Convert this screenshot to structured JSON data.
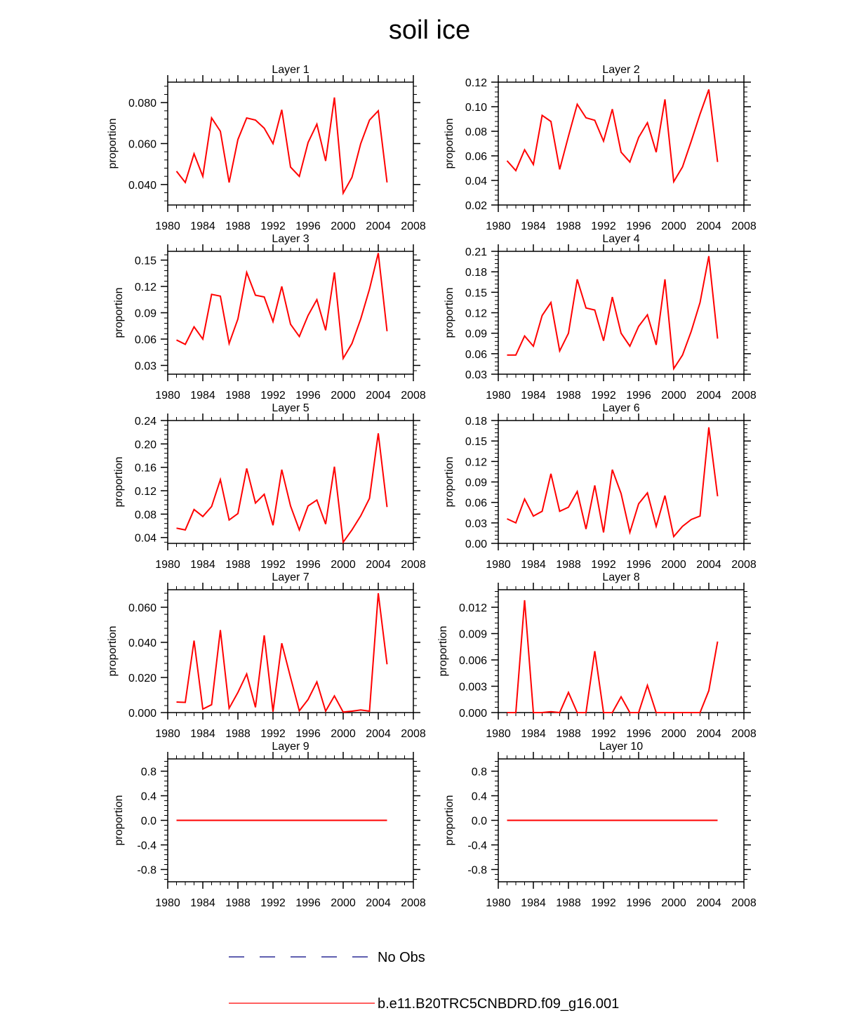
{
  "title": "soil ice",
  "colors": {
    "model": "#ff0000",
    "obs": "#000080",
    "axis": "#000000"
  },
  "legend": {
    "obs_label": "No Obs",
    "model_label": "b.e11.B20TRC5CNBDRD.f09_g16.001"
  },
  "chart_data": [
    {
      "type": "line",
      "title": "Layer 1",
      "xlabel": "",
      "ylabel": "proportion",
      "xlim": [
        1980,
        2008
      ],
      "ylim": [
        0.03,
        0.09
      ],
      "xticks": [
        1980,
        1984,
        1988,
        1992,
        1996,
        2000,
        2004,
        2008
      ],
      "xtick_labels": [
        "1980",
        "1984",
        "1988",
        "1992",
        "1996",
        "2000",
        "2004",
        "2008"
      ],
      "yticks": [
        0.04,
        0.06,
        0.08
      ],
      "ytick_labels": [
        "0.040",
        "0.060",
        "0.080"
      ],
      "x": [
        1981,
        1982,
        1983,
        1984,
        1985,
        1986,
        1987,
        1988,
        1989,
        1990,
        1991,
        1992,
        1993,
        1994,
        1995,
        1996,
        1997,
        1998,
        1999,
        2000,
        2001,
        2002,
        2003,
        2004,
        2005
      ],
      "series": [
        {
          "name": "b.e11.B20TRC5CNBDRD.f09_g16.001",
          "values": [
            0.0465,
            0.041,
            0.055,
            0.044,
            0.0725,
            0.066,
            0.041,
            0.062,
            0.0725,
            0.0715,
            0.0675,
            0.06,
            0.0765,
            0.0485,
            0.044,
            0.0605,
            0.0695,
            0.0515,
            0.0825,
            0.0358,
            0.0435,
            0.06,
            0.0715,
            0.076,
            0.041
          ]
        }
      ]
    },
    {
      "type": "line",
      "title": "Layer 2",
      "xlabel": "",
      "ylabel": "proportion",
      "xlim": [
        1980,
        2008
      ],
      "ylim": [
        0.02,
        0.12
      ],
      "xticks": [
        1980,
        1984,
        1988,
        1992,
        1996,
        2000,
        2004,
        2008
      ],
      "xtick_labels": [
        "1980",
        "1984",
        "1988",
        "1992",
        "1996",
        "2000",
        "2004",
        "2008"
      ],
      "yticks": [
        0.02,
        0.04,
        0.06,
        0.08,
        0.1,
        0.12
      ],
      "ytick_labels": [
        "0.02",
        "0.04",
        "0.06",
        "0.08",
        "0.10",
        "0.12"
      ],
      "x": [
        1981,
        1982,
        1983,
        1984,
        1985,
        1986,
        1987,
        1988,
        1989,
        1990,
        1991,
        1992,
        1993,
        1994,
        1995,
        1996,
        1997,
        1998,
        1999,
        2000,
        2001,
        2002,
        2003,
        2004,
        2005
      ],
      "series": [
        {
          "name": "b.e11.B20TRC5CNBDRD.f09_g16.001",
          "values": [
            0.056,
            0.048,
            0.065,
            0.053,
            0.093,
            0.088,
            0.049,
            0.076,
            0.102,
            0.091,
            0.089,
            0.072,
            0.098,
            0.063,
            0.055,
            0.075,
            0.087,
            0.063,
            0.106,
            0.039,
            0.051,
            0.072,
            0.094,
            0.114,
            0.055
          ]
        }
      ]
    },
    {
      "type": "line",
      "title": "Layer 3",
      "xlabel": "",
      "ylabel": "proportion",
      "xlim": [
        1980,
        2008
      ],
      "ylim": [
        0.02,
        0.16
      ],
      "xticks": [
        1980,
        1984,
        1988,
        1992,
        1996,
        2000,
        2004,
        2008
      ],
      "xtick_labels": [
        "1980",
        "1984",
        "1988",
        "1992",
        "1996",
        "2000",
        "2004",
        "2008"
      ],
      "yticks": [
        0.03,
        0.06,
        0.09,
        0.12,
        0.15
      ],
      "ytick_labels": [
        "0.03",
        "0.06",
        "0.09",
        "0.12",
        "0.15"
      ],
      "x": [
        1981,
        1982,
        1983,
        1984,
        1985,
        1986,
        1987,
        1988,
        1989,
        1990,
        1991,
        1992,
        1993,
        1994,
        1995,
        1996,
        1997,
        1998,
        1999,
        2000,
        2001,
        2002,
        2003,
        2004,
        2005
      ],
      "series": [
        {
          "name": "b.e11.B20TRC5CNBDRD.f09_g16.001",
          "values": [
            0.059,
            0.054,
            0.074,
            0.06,
            0.111,
            0.109,
            0.055,
            0.083,
            0.136,
            0.11,
            0.108,
            0.08,
            0.12,
            0.077,
            0.063,
            0.087,
            0.105,
            0.07,
            0.136,
            0.038,
            0.055,
            0.083,
            0.117,
            0.158,
            0.069
          ]
        }
      ]
    },
    {
      "type": "line",
      "title": "Layer 4",
      "xlabel": "",
      "ylabel": "proportion",
      "xlim": [
        1980,
        2008
      ],
      "ylim": [
        0.03,
        0.21
      ],
      "xticks": [
        1980,
        1984,
        1988,
        1992,
        1996,
        2000,
        2004,
        2008
      ],
      "xtick_labels": [
        "1980",
        "1984",
        "1988",
        "1992",
        "1996",
        "2000",
        "2004",
        "2008"
      ],
      "yticks": [
        0.03,
        0.06,
        0.09,
        0.12,
        0.15,
        0.18,
        0.21
      ],
      "ytick_labels": [
        "0.03",
        "0.06",
        "0.09",
        "0.12",
        "0.15",
        "0.18",
        "0.21"
      ],
      "x": [
        1981,
        1982,
        1983,
        1984,
        1985,
        1986,
        1987,
        1988,
        1989,
        1990,
        1991,
        1992,
        1993,
        1994,
        1995,
        1996,
        1997,
        1998,
        1999,
        2000,
        2001,
        2002,
        2003,
        2004,
        2005
      ],
      "series": [
        {
          "name": "b.e11.B20TRC5CNBDRD.f09_g16.001",
          "values": [
            0.058,
            0.058,
            0.086,
            0.071,
            0.116,
            0.135,
            0.064,
            0.09,
            0.169,
            0.127,
            0.124,
            0.079,
            0.143,
            0.09,
            0.071,
            0.1,
            0.117,
            0.073,
            0.169,
            0.038,
            0.058,
            0.093,
            0.135,
            0.203,
            0.082
          ]
        }
      ]
    },
    {
      "type": "line",
      "title": "Layer 5",
      "xlabel": "",
      "ylabel": "proportion",
      "xlim": [
        1980,
        2008
      ],
      "ylim": [
        0.03,
        0.24
      ],
      "xticks": [
        1980,
        1984,
        1988,
        1992,
        1996,
        2000,
        2004,
        2008
      ],
      "xtick_labels": [
        "1980",
        "1984",
        "1988",
        "1992",
        "1996",
        "2000",
        "2004",
        "2008"
      ],
      "yticks": [
        0.04,
        0.08,
        0.12,
        0.16,
        0.2,
        0.24
      ],
      "ytick_labels": [
        "0.04",
        "0.08",
        "0.12",
        "0.16",
        "0.20",
        "0.24"
      ],
      "x": [
        1981,
        1982,
        1983,
        1984,
        1985,
        1986,
        1987,
        1988,
        1989,
        1990,
        1991,
        1992,
        1993,
        1994,
        1995,
        1996,
        1997,
        1998,
        1999,
        2000,
        2001,
        2002,
        2003,
        2004,
        2005
      ],
      "series": [
        {
          "name": "b.e11.B20TRC5CNBDRD.f09_g16.001",
          "values": [
            0.056,
            0.053,
            0.088,
            0.076,
            0.093,
            0.139,
            0.07,
            0.081,
            0.158,
            0.099,
            0.114,
            0.061,
            0.156,
            0.094,
            0.053,
            0.094,
            0.104,
            0.063,
            0.161,
            0.032,
            0.053,
            0.077,
            0.107,
            0.218,
            0.092
          ]
        }
      ]
    },
    {
      "type": "line",
      "title": "Layer 6",
      "xlabel": "",
      "ylabel": "proportion",
      "xlim": [
        1980,
        2008
      ],
      "ylim": [
        0.0,
        0.18
      ],
      "xticks": [
        1980,
        1984,
        1988,
        1992,
        1996,
        2000,
        2004,
        2008
      ],
      "xtick_labels": [
        "1980",
        "1984",
        "1988",
        "1992",
        "1996",
        "2000",
        "2004",
        "2008"
      ],
      "yticks": [
        0.0,
        0.03,
        0.06,
        0.09,
        0.12,
        0.15,
        0.18
      ],
      "ytick_labels": [
        "0.00",
        "0.03",
        "0.06",
        "0.09",
        "0.12",
        "0.15",
        "0.18"
      ],
      "x": [
        1981,
        1982,
        1983,
        1984,
        1985,
        1986,
        1987,
        1988,
        1989,
        1990,
        1991,
        1992,
        1993,
        1994,
        1995,
        1996,
        1997,
        1998,
        1999,
        2000,
        2001,
        2002,
        2003,
        2004,
        2005
      ],
      "series": [
        {
          "name": "b.e11.B20TRC5CNBDRD.f09_g16.001",
          "values": [
            0.036,
            0.03,
            0.065,
            0.04,
            0.047,
            0.102,
            0.047,
            0.053,
            0.076,
            0.021,
            0.085,
            0.016,
            0.108,
            0.073,
            0.016,
            0.058,
            0.074,
            0.025,
            0.07,
            0.01,
            0.025,
            0.035,
            0.04,
            0.17,
            0.069
          ]
        }
      ]
    },
    {
      "type": "line",
      "title": "Layer 7",
      "xlabel": "",
      "ylabel": "proportion",
      "xlim": [
        1980,
        2008
      ],
      "ylim": [
        0.0,
        0.07
      ],
      "xticks": [
        1980,
        1984,
        1988,
        1992,
        1996,
        2000,
        2004,
        2008
      ],
      "xtick_labels": [
        "1980",
        "1984",
        "1988",
        "1992",
        "1996",
        "2000",
        "2004",
        "2008"
      ],
      "yticks": [
        0.0,
        0.02,
        0.04,
        0.06
      ],
      "ytick_labels": [
        "0.000",
        "0.020",
        "0.040",
        "0.060"
      ],
      "x": [
        1981,
        1982,
        1983,
        1984,
        1985,
        1986,
        1987,
        1988,
        1989,
        1990,
        1991,
        1992,
        1993,
        1994,
        1995,
        1996,
        1997,
        1998,
        1999,
        2000,
        2001,
        2002,
        2003,
        2004,
        2005
      ],
      "series": [
        {
          "name": "b.e11.B20TRC5CNBDRD.f09_g16.001",
          "values": [
            0.006,
            0.0058,
            0.041,
            0.002,
            0.0045,
            0.047,
            0.0025,
            0.0115,
            0.022,
            0.003,
            0.044,
            0.0005,
            0.0395,
            0.02,
            0.001,
            0.0075,
            0.0175,
            0.0008,
            0.0095,
            0.0003,
            0.0008,
            0.0015,
            0.0008,
            0.068,
            0.0275
          ]
        }
      ]
    },
    {
      "type": "line",
      "title": "Layer 8",
      "xlabel": "",
      "ylabel": "proportion",
      "xlim": [
        1980,
        2008
      ],
      "ylim": [
        0.0,
        0.014
      ],
      "xticks": [
        1980,
        1984,
        1988,
        1992,
        1996,
        2000,
        2004,
        2008
      ],
      "xtick_labels": [
        "1980",
        "1984",
        "1988",
        "1992",
        "1996",
        "2000",
        "2004",
        "2008"
      ],
      "yticks": [
        0.0,
        0.003,
        0.006,
        0.009,
        0.012
      ],
      "ytick_labels": [
        "0.000",
        "0.003",
        "0.006",
        "0.009",
        "0.012"
      ],
      "x": [
        1981,
        1982,
        1983,
        1984,
        1985,
        1986,
        1987,
        1988,
        1989,
        1990,
        1991,
        1992,
        1993,
        1994,
        1995,
        1996,
        1997,
        1998,
        1999,
        2000,
        2001,
        2002,
        2003,
        2004,
        2005
      ],
      "series": [
        {
          "name": "b.e11.B20TRC5CNBDRD.f09_g16.001",
          "values": [
            0.0,
            0.0,
            0.0128,
            0.0,
            0.0,
            0.0001,
            0.0,
            0.0023,
            0.0,
            0.0,
            0.007,
            0.0,
            0.0,
            0.0018,
            0.0,
            0.0,
            0.0031,
            0.0,
            0.0,
            0.0,
            0.0,
            0.0,
            0.0,
            0.0025,
            0.0081
          ]
        }
      ]
    },
    {
      "type": "line",
      "title": "Layer 9",
      "xlabel": "",
      "ylabel": "proportion",
      "xlim": [
        1980,
        2008
      ],
      "ylim": [
        -1.0,
        1.0
      ],
      "xticks": [
        1980,
        1984,
        1988,
        1992,
        1996,
        2000,
        2004,
        2008
      ],
      "xtick_labels": [
        "1980",
        "1984",
        "1988",
        "1992",
        "1996",
        "2000",
        "2004",
        "2008"
      ],
      "yticks": [
        -0.8,
        -0.4,
        0.0,
        0.4,
        0.8
      ],
      "ytick_labels": [
        "-0.8",
        "-0.4",
        "0.0",
        "0.4",
        "0.8"
      ],
      "x": [
        1981,
        1982,
        1983,
        1984,
        1985,
        1986,
        1987,
        1988,
        1989,
        1990,
        1991,
        1992,
        1993,
        1994,
        1995,
        1996,
        1997,
        1998,
        1999,
        2000,
        2001,
        2002,
        2003,
        2004,
        2005
      ],
      "series": [
        {
          "name": "b.e11.B20TRC5CNBDRD.f09_g16.001",
          "values": [
            0,
            0,
            0,
            0,
            0,
            0,
            0,
            0,
            0,
            0,
            0,
            0,
            0,
            0,
            0,
            0,
            0,
            0,
            0,
            0,
            0,
            0,
            0,
            0,
            0
          ]
        }
      ]
    },
    {
      "type": "line",
      "title": "Layer 10",
      "xlabel": "",
      "ylabel": "proportion",
      "xlim": [
        1980,
        2008
      ],
      "ylim": [
        -1.0,
        1.0
      ],
      "xticks": [
        1980,
        1984,
        1988,
        1992,
        1996,
        2000,
        2004,
        2008
      ],
      "xtick_labels": [
        "1980",
        "1984",
        "1988",
        "1992",
        "1996",
        "2000",
        "2004",
        "2008"
      ],
      "yticks": [
        -0.8,
        -0.4,
        0.0,
        0.4,
        0.8
      ],
      "ytick_labels": [
        "-0.8",
        "-0.4",
        "0.0",
        "0.4",
        "0.8"
      ],
      "x": [
        1981,
        1982,
        1983,
        1984,
        1985,
        1986,
        1987,
        1988,
        1989,
        1990,
        1991,
        1992,
        1993,
        1994,
        1995,
        1996,
        1997,
        1998,
        1999,
        2000,
        2001,
        2002,
        2003,
        2004,
        2005
      ],
      "series": [
        {
          "name": "b.e11.B20TRC5CNBDRD.f09_g16.001",
          "values": [
            0,
            0,
            0,
            0,
            0,
            0,
            0,
            0,
            0,
            0,
            0,
            0,
            0,
            0,
            0,
            0,
            0,
            0,
            0,
            0,
            0,
            0,
            0,
            0,
            0
          ]
        }
      ]
    }
  ]
}
